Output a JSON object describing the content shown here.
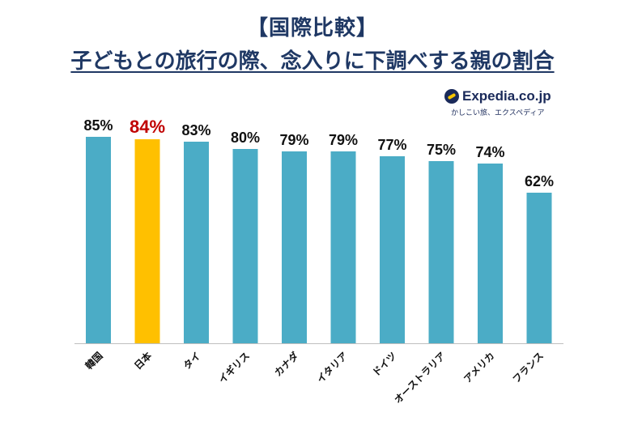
{
  "title": "【国際比較】",
  "subtitle": "子どもとの旅行の際、念入りに下調べする親の割合",
  "logo": {
    "name": "Expedia.co.jp",
    "tagline": "かしこい旅、エクスペディア"
  },
  "colors": {
    "bar": "#4bacc6",
    "highlight": "#ffc000",
    "highlight_label": "#c00000",
    "title": "#1f3864"
  },
  "chart_data": {
    "type": "bar",
    "categories": [
      "韓国",
      "日本",
      "タイ",
      "イギリス",
      "カナダ",
      "イタリア",
      "ドイツ",
      "オーストラリア",
      "アメリカ",
      "フランス"
    ],
    "values": [
      85,
      84,
      83,
      80,
      79,
      79,
      77,
      75,
      74,
      62
    ],
    "labels": [
      "85%",
      "84%",
      "83%",
      "80%",
      "79%",
      "79%",
      "77%",
      "75%",
      "74%",
      "62%"
    ],
    "highlight": "日本",
    "ylim": [
      0,
      100
    ],
    "grid": false,
    "legend": "none"
  }
}
